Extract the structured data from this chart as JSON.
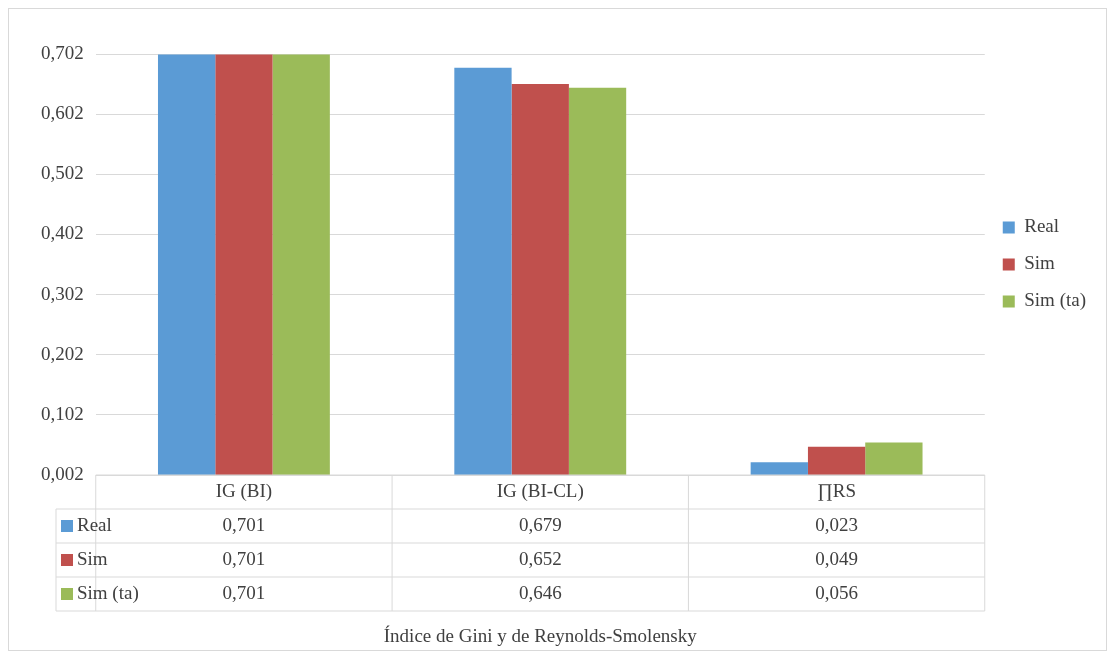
{
  "chart_data": {
    "type": "bar",
    "annotations": [
      "Índice de Gini y de Reynolds-Smolensky"
    ],
    "categories": [
      "IG (BI)",
      "IG (BI-CL)",
      "∏RS"
    ],
    "series": [
      {
        "name": "Real",
        "color": "#5b9bd5",
        "values": [
          0.701,
          0.679,
          0.023
        ],
        "value_labels": [
          "0,701",
          "0,679",
          "0,023"
        ]
      },
      {
        "name": "Sim",
        "color": "#c0504d",
        "values": [
          0.701,
          0.652,
          0.049
        ],
        "value_labels": [
          "0,701",
          "0,652",
          "0,049"
        ]
      },
      {
        "name": "Sim (ta)",
        "color": "#9bbb59",
        "values": [
          0.701,
          0.646,
          0.056
        ],
        "value_labels": [
          "0,701",
          "0,646",
          "0,056"
        ]
      }
    ],
    "ylim": [
      0.002,
      0.702
    ],
    "yticks": [
      {
        "value": 0.002,
        "label": "0,002"
      },
      {
        "value": 0.102,
        "label": "0,102"
      },
      {
        "value": 0.202,
        "label": "0,202"
      },
      {
        "value": 0.302,
        "label": "0,302"
      },
      {
        "value": 0.402,
        "label": "0,402"
      },
      {
        "value": 0.502,
        "label": "0,502"
      },
      {
        "value": 0.602,
        "label": "0,602"
      },
      {
        "value": 0.702,
        "label": "0,702"
      }
    ],
    "grid": "y",
    "legend": "right"
  }
}
